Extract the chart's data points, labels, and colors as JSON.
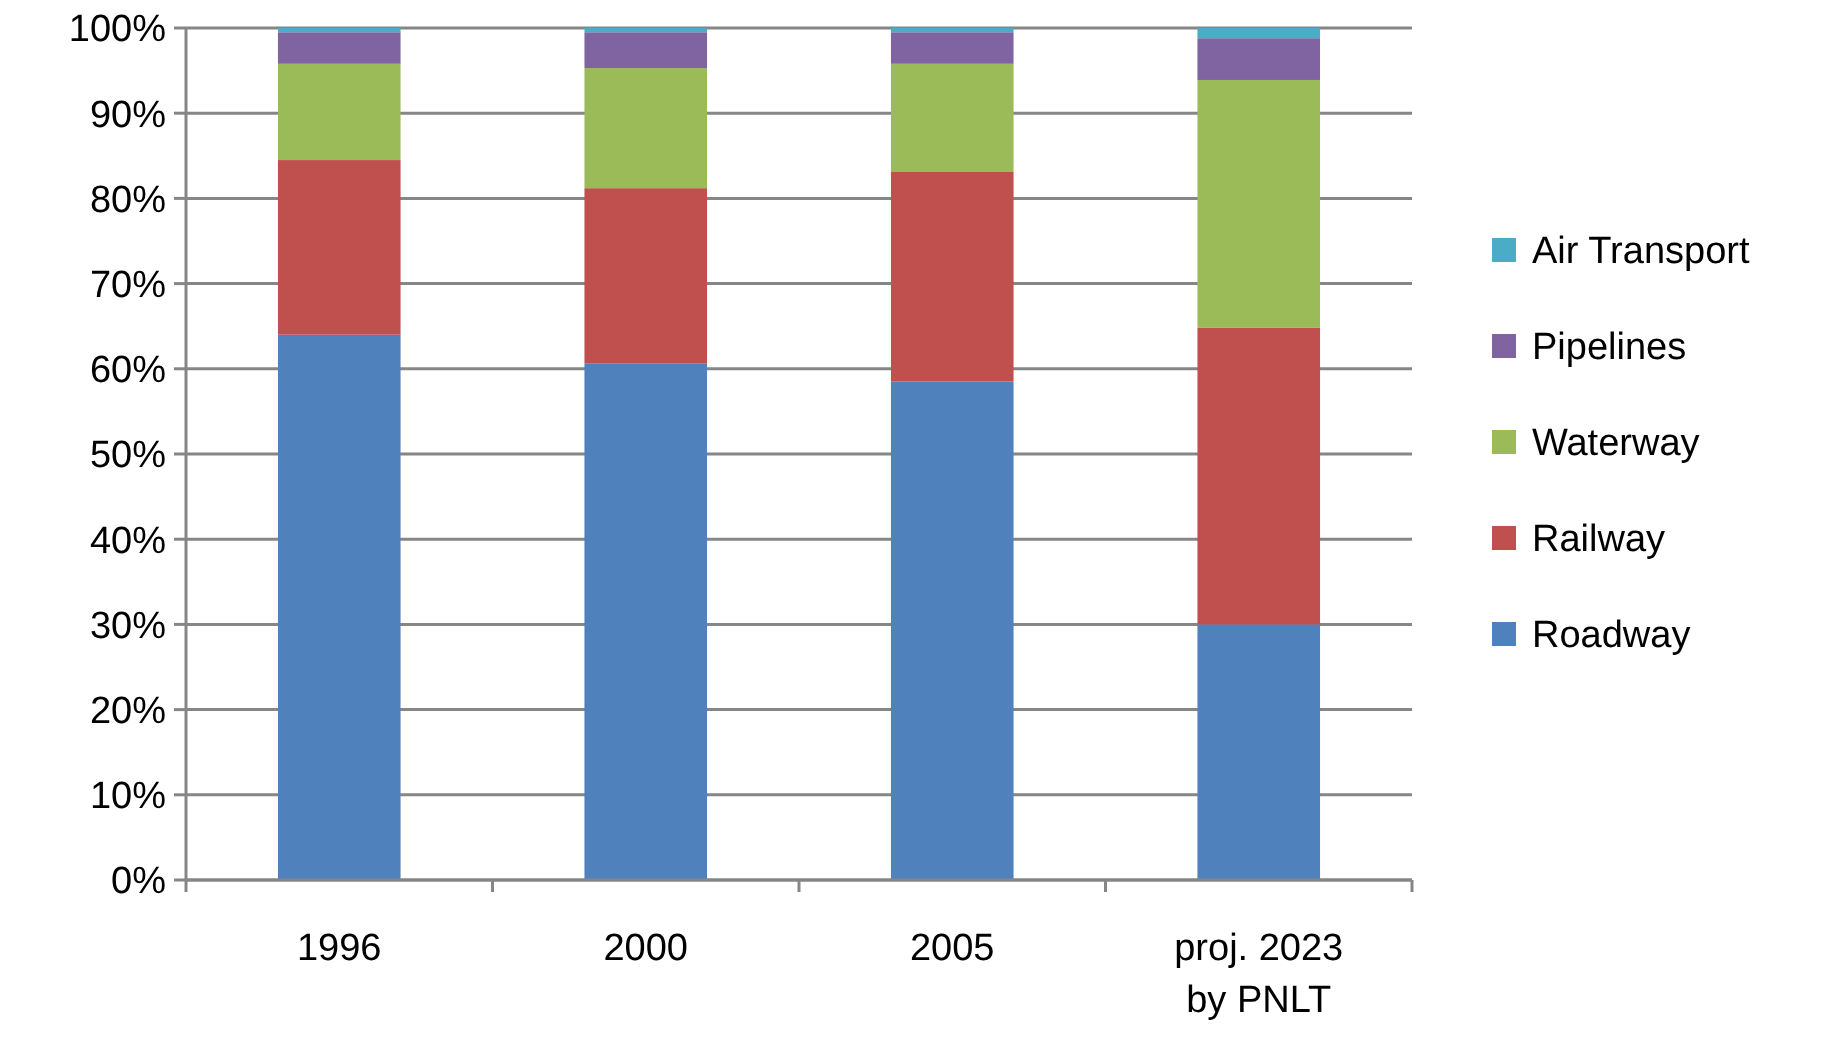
{
  "chart_data": {
    "type": "bar",
    "stacked": true,
    "categories": [
      "1996",
      "2000",
      "2005",
      "proj. 2023\nby PNLT"
    ],
    "series": [
      {
        "name": "Roadway",
        "color": "#4f81bd",
        "values": [
          64,
          60.6,
          58.5,
          30
        ]
      },
      {
        "name": "Railway",
        "color": "#c0504d",
        "values": [
          20.5,
          20.6,
          24.6,
          34.8
        ]
      },
      {
        "name": "Waterway",
        "color": "#9bbb59",
        "values": [
          11.3,
          14.1,
          12.7,
          29.1
        ]
      },
      {
        "name": "Pipelines",
        "color": "#8064a2",
        "values": [
          3.7,
          4.2,
          3.7,
          4.9
        ]
      },
      {
        "name": "Air Transport",
        "color": "#4bacc6",
        "values": [
          0.5,
          0.5,
          0.5,
          1.2
        ]
      }
    ],
    "ylim": [
      0,
      100
    ],
    "yticks": [
      {
        "value": 0,
        "label": "0%"
      },
      {
        "value": 10,
        "label": "10%"
      },
      {
        "value": 20,
        "label": "20%"
      },
      {
        "value": 30,
        "label": "30%"
      },
      {
        "value": 40,
        "label": "40%"
      },
      {
        "value": 50,
        "label": "50%"
      },
      {
        "value": 60,
        "label": "60%"
      },
      {
        "value": 70,
        "label": "70%"
      },
      {
        "value": 80,
        "label": "80%"
      },
      {
        "value": 90,
        "label": "90%"
      },
      {
        "value": 100,
        "label": "100%"
      }
    ],
    "grid": "y",
    "legend": "right"
  }
}
